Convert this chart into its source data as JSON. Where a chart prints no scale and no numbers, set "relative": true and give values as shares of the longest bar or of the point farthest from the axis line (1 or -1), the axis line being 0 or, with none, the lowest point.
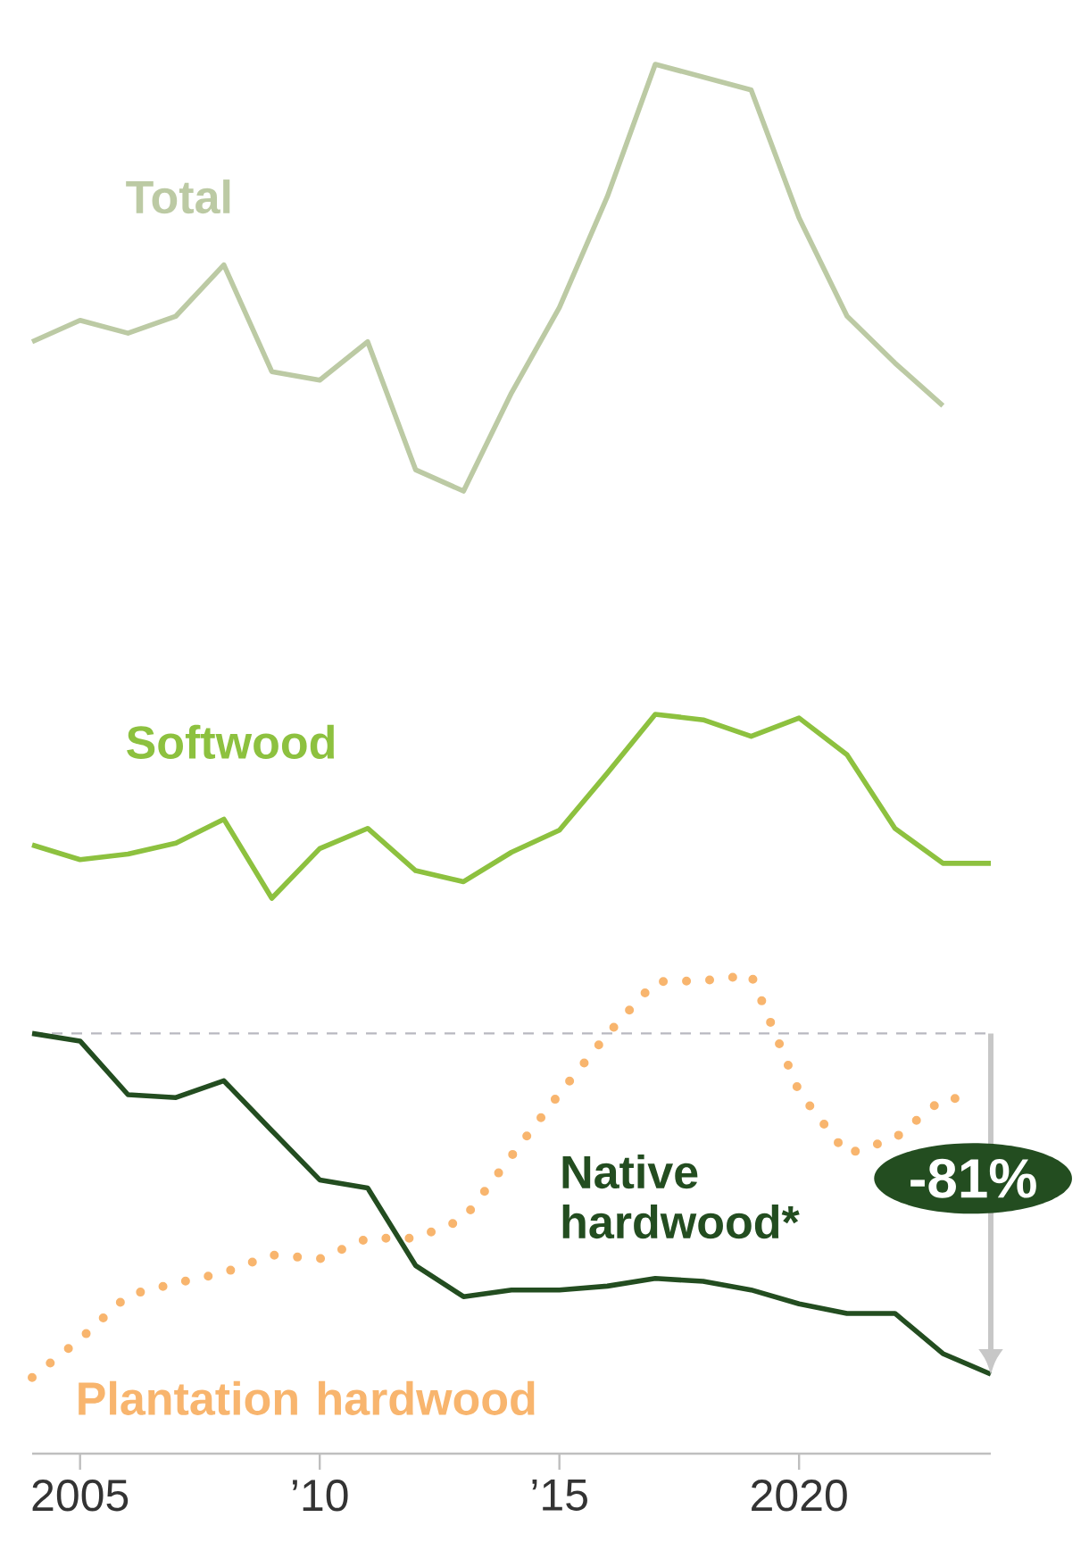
{
  "chart_data": [
    {
      "type": "line",
      "relative": true,
      "tick_labels": false,
      "categories": [
        null,
        null,
        null,
        null,
        null,
        null,
        null,
        null,
        null,
        null,
        null,
        null,
        null,
        null,
        null,
        null,
        null,
        null,
        null,
        null,
        null
      ],
      "series": [
        {
          "name": "Total",
          "color": "#bccaa4",
          "values": [
            0.35,
            0.4,
            0.37,
            0.41,
            0.53,
            0.28,
            0.26,
            0.35,
            0.05,
            0,
            0.23,
            0.43,
            0.69,
            1,
            0.97,
            0.94,
            0.64,
            0.41,
            0.3,
            0.2,
            null
          ]
        }
      ]
    },
    {
      "type": "line",
      "relative": true,
      "tick_labels": false,
      "categories": [
        null,
        null,
        null,
        null,
        null,
        null,
        null,
        null,
        null,
        null,
        null,
        null,
        null,
        null,
        null,
        null,
        null,
        null,
        null,
        null,
        null
      ],
      "series": [
        {
          "name": "Softwood",
          "color": "#8dc13f",
          "values": [
            0.29,
            0.21,
            0.24,
            0.3,
            0.43,
            0,
            0.27,
            0.38,
            0.15,
            0.09,
            0.25,
            0.37,
            0.68,
            1,
            0.97,
            0.88,
            0.98,
            0.78,
            0.38,
            0.19,
            0.19
          ]
        }
      ]
    },
    {
      "type": "line",
      "relative": true,
      "xlim": [
        2004,
        2024
      ],
      "tick_labels": "x",
      "xticks": [
        2005,
        {
          "value": 2010,
          "label": "’10"
        },
        {
          "value": 2015,
          "label": "’15"
        },
        2020
      ],
      "series": [
        {
          "name": "Native hardwood*",
          "color": "#234d20",
          "x": [
            2004,
            2005,
            2006,
            2007,
            2008,
            2009,
            2010,
            2011,
            2012,
            2013,
            2014,
            2015,
            2016,
            2017,
            2018,
            2019,
            2020,
            2021,
            2022,
            2023,
            2024
          ],
          "values": [
            0.878,
            0.862,
            0.75,
            0.744,
            0.779,
            0.675,
            0.572,
            0.555,
            0.393,
            0.328,
            0.342,
            0.342,
            0.35,
            0.366,
            0.36,
            0.342,
            0.313,
            0.293,
            0.293,
            0.209,
            0.166
          ]
        },
        {
          "name": "Plantation hardwood",
          "color": "#f8b56e",
          "line_style": "dotted",
          "x": [
            2004,
            2005,
            2006,
            2007,
            2008,
            2009,
            2010,
            2011,
            2012,
            2013,
            2014,
            2015,
            2016,
            2017,
            2018,
            2019,
            2020,
            2021,
            2022,
            2023,
            2023.5
          ],
          "values": [
            0.159,
            0.239,
            0.331,
            0.356,
            0.378,
            0.415,
            0.407,
            0.45,
            0.45,
            0.49,
            0.622,
            0.752,
            0.876,
            0.986,
            0.988,
            1,
            0.756,
            0.626,
            0.659,
            0.742,
            0.742
          ]
        }
      ],
      "ref_lines": [
        {
          "axis": "y",
          "value": 0.878,
          "color": "#b8b8c0",
          "line_style": "dashed"
        }
      ],
      "annotations": [
        "-81%"
      ]
    }
  ]
}
